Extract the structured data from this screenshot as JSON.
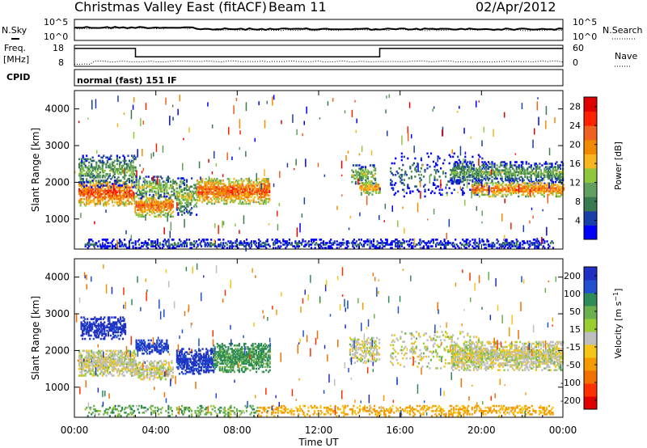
{
  "header": {
    "title": "Christmas Valley East (fitACF)",
    "beam": "Beam 11",
    "date": "02/Apr/2012"
  },
  "top_panels": {
    "nsky_label": "N.Sky",
    "nsearch_label": "N.Search",
    "noise_ticks": [
      "10^5",
      "10^0"
    ],
    "freq_label": "Freq.",
    "freq_unit": "[MHz]",
    "freq_ticks": [
      "18",
      "8"
    ],
    "nave_label": "Nave",
    "nave_ticks": [
      "60",
      "0"
    ],
    "cpid_label": "CPID",
    "cpid_value": "normal (fast) 151 IF"
  },
  "colors": {
    "power_scale": [
      "#0000ff",
      "#1a3fa8",
      "#3a7a50",
      "#62a060",
      "#8ec63f",
      "#f7b51e",
      "#f08a00",
      "#f06020",
      "#ff2000",
      "#e00000"
    ],
    "velocity_scale": [
      "#2030c0",
      "#2050d0",
      "#2e8b57",
      "#6ab04c",
      "#9acd32",
      "#bebebe",
      "#f5c518",
      "#f59a00",
      "#f07000",
      "#ff3000",
      "#e00000"
    ],
    "ground_scatter": "#bebebe"
  },
  "chart_data": [
    {
      "type": "heatmap",
      "name": "power",
      "xlabel": "Time UT",
      "ylabel": "Slant Range [km]",
      "x_ticks": [
        "00:00",
        "04:00",
        "08:00",
        "12:00",
        "16:00",
        "20:00",
        "00:00"
      ],
      "y_ticks": [
        1000,
        2000,
        3000,
        4000
      ],
      "xlim_hours": [
        0,
        24
      ],
      "ylim_km": [
        180,
        4500
      ],
      "colorbar": {
        "label": "Power [dB]",
        "ticks": [
          4,
          8,
          12,
          16,
          20,
          24,
          28
        ],
        "range": [
          0,
          30
        ]
      },
      "regions": [
        {
          "t0": 0.2,
          "t1": 2.9,
          "r_core": 1700,
          "r_spread": 350,
          "level": 24,
          "density": 0.9
        },
        {
          "t0": 0.2,
          "t1": 3.0,
          "r_core": 2300,
          "r_spread": 450,
          "level": 12,
          "density": 0.55
        },
        {
          "t0": 3.0,
          "t1": 4.8,
          "r_core": 1350,
          "r_spread": 300,
          "level": 22,
          "density": 0.85
        },
        {
          "t0": 3.0,
          "t1": 5.0,
          "r_core": 1850,
          "r_spread": 300,
          "level": 14,
          "density": 0.6
        },
        {
          "t0": 5.0,
          "t1": 6.0,
          "r_core": 1600,
          "r_spread": 500,
          "level": 14,
          "density": 0.6
        },
        {
          "t0": 6.0,
          "t1": 9.6,
          "r_core": 1750,
          "r_spread": 350,
          "level": 23,
          "density": 0.9
        },
        {
          "t0": 13.6,
          "t1": 14.8,
          "r_core": 2200,
          "r_spread": 250,
          "level": 14,
          "density": 0.6
        },
        {
          "t0": 14.0,
          "t1": 15.0,
          "r_core": 1850,
          "r_spread": 200,
          "level": 20,
          "density": 0.7
        },
        {
          "t0": 15.5,
          "t1": 20.0,
          "r_core": 2200,
          "r_spread": 600,
          "level": 8,
          "density": 0.18
        },
        {
          "t0": 18.5,
          "t1": 24.0,
          "r_core": 2250,
          "r_spread": 300,
          "level": 12,
          "density": 0.7
        },
        {
          "t0": 19.5,
          "t1": 24.0,
          "r_core": 1800,
          "r_spread": 200,
          "level": 22,
          "density": 0.85
        },
        {
          "t0": 0.5,
          "t1": 23.5,
          "r_core": 300,
          "r_spread": 150,
          "level": 6,
          "density": 0.5
        }
      ]
    },
    {
      "type": "heatmap",
      "name": "velocity",
      "xlabel": "Time UT",
      "ylabel": "Slant Range [km]",
      "x_ticks": [
        "00:00",
        "04:00",
        "08:00",
        "12:00",
        "16:00",
        "20:00",
        "00:00"
      ],
      "y_ticks": [
        1000,
        2000,
        3000,
        4000
      ],
      "xlim_hours": [
        0,
        24
      ],
      "ylim_km": [
        180,
        4500
      ],
      "colorbar": {
        "label": "Velocity [m s^-1]",
        "ticks": [
          200,
          100,
          50,
          15,
          -15,
          -50,
          -100,
          -200
        ],
        "range": [
          -250,
          250
        ]
      },
      "regions": [
        {
          "t0": 0.2,
          "t1": 3.0,
          "r_core": 1650,
          "r_spread": 350,
          "level": 0,
          "density": 0.9
        },
        {
          "t0": 0.3,
          "t1": 2.5,
          "r_core": 2600,
          "r_spread": 300,
          "level": 220,
          "density": 0.8
        },
        {
          "t0": 3.0,
          "t1": 4.6,
          "r_core": 2100,
          "r_spread": 200,
          "level": 200,
          "density": 0.85
        },
        {
          "t0": 3.0,
          "t1": 4.8,
          "r_core": 1450,
          "r_spread": 250,
          "level": 0,
          "density": 0.8
        },
        {
          "t0": 5.0,
          "t1": 6.8,
          "r_core": 1700,
          "r_spread": 350,
          "level": 210,
          "density": 0.85
        },
        {
          "t0": 6.8,
          "t1": 9.6,
          "r_core": 1800,
          "r_spread": 400,
          "level": 60,
          "density": 0.85
        },
        {
          "t0": 13.5,
          "t1": 15.0,
          "r_core": 2000,
          "r_spread": 350,
          "level": 0,
          "density": 0.6
        },
        {
          "t0": 15.5,
          "t1": 20.0,
          "r_core": 2000,
          "r_spread": 500,
          "level": 0,
          "density": 0.25
        },
        {
          "t0": 18.5,
          "t1": 24.0,
          "r_core": 1850,
          "r_spread": 400,
          "level": 0,
          "density": 0.85
        },
        {
          "t0": 0.5,
          "t1": 9.0,
          "r_core": 350,
          "r_spread": 150,
          "level": 40,
          "density": 0.35
        },
        {
          "t0": 9.0,
          "t1": 23.5,
          "r_core": 350,
          "r_spread": 150,
          "level": -60,
          "density": 0.45
        }
      ]
    }
  ],
  "cpid_changes_hours": [
    3.0,
    15.0
  ],
  "freq_levels_mhz": [
    16.5,
    12.5,
    16.5
  ]
}
